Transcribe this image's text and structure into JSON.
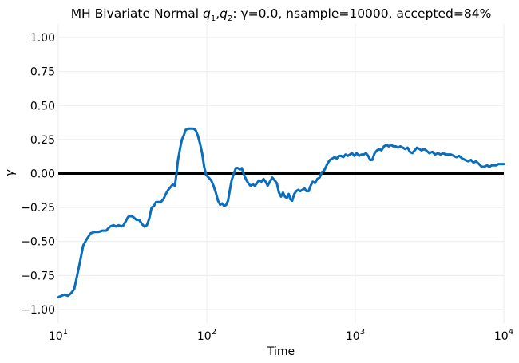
{
  "chart_data": {
    "type": "line",
    "title": "MH Bivariate Normal q₁,q₂: γ=0.0, nsample=10000, accepted=84%",
    "title_parts": {
      "prefix": "MH Bivariate Normal ",
      "q1": "q",
      "q1_sub": "1",
      "comma": ",",
      "q2": "q",
      "q2_sub": "2",
      "suffix": ": γ=0.0, nsample=10000, accepted=84%"
    },
    "xlabel": "Time",
    "ylabel": "γ",
    "x_scale": "log",
    "xlim": [
      10,
      10000
    ],
    "ylim": [
      -1.1,
      1.1
    ],
    "x_ticks": [
      {
        "value": 10,
        "base": "10",
        "exp": "1"
      },
      {
        "value": 100,
        "base": "10",
        "exp": "2"
      },
      {
        "value": 1000,
        "base": "10",
        "exp": "3"
      },
      {
        "value": 10000,
        "base": "10",
        "exp": "4"
      }
    ],
    "y_ticks": [
      {
        "value": 1.0,
        "label": "1.00"
      },
      {
        "value": 0.75,
        "label": "0.75"
      },
      {
        "value": 0.5,
        "label": "0.50"
      },
      {
        "value": 0.25,
        "label": "0.25"
      },
      {
        "value": 0.0,
        "label": "0.00"
      },
      {
        "value": -0.25,
        "label": "−0.25"
      },
      {
        "value": -0.5,
        "label": "−0.50"
      },
      {
        "value": -0.75,
        "label": "−0.75"
      },
      {
        "value": -1.0,
        "label": "−1.00"
      }
    ],
    "grid": true,
    "reference_line": {
      "y": 0.0,
      "color": "#000000"
    },
    "series": [
      {
        "color": "#0a6ebd",
        "points": [
          [
            10,
            -0.91
          ],
          [
            10.5,
            -0.9
          ],
          [
            11,
            -0.89
          ],
          [
            11.6,
            -0.9
          ],
          [
            12.2,
            -0.88
          ],
          [
            12.8,
            -0.85
          ],
          [
            13.4,
            -0.75
          ],
          [
            14,
            -0.65
          ],
          [
            14.7,
            -0.53
          ],
          [
            15.6,
            -0.48
          ],
          [
            16.5,
            -0.44
          ],
          [
            17.5,
            -0.43
          ],
          [
            18.6,
            -0.43
          ],
          [
            19.8,
            -0.42
          ],
          [
            21,
            -0.42
          ],
          [
            22.3,
            -0.39
          ],
          [
            23.5,
            -0.38
          ],
          [
            24.5,
            -0.39
          ],
          [
            25.5,
            -0.38
          ],
          [
            26.5,
            -0.39
          ],
          [
            27.5,
            -0.38
          ],
          [
            28.5,
            -0.35
          ],
          [
            29.5,
            -0.32
          ],
          [
            30.5,
            -0.31
          ],
          [
            32,
            -0.32
          ],
          [
            33.5,
            -0.34
          ],
          [
            35,
            -0.34
          ],
          [
            36.5,
            -0.37
          ],
          [
            38,
            -0.39
          ],
          [
            39.5,
            -0.38
          ],
          [
            41,
            -0.33
          ],
          [
            42.5,
            -0.25
          ],
          [
            44,
            -0.24
          ],
          [
            45.5,
            -0.21
          ],
          [
            47,
            -0.21
          ],
          [
            49,
            -0.21
          ],
          [
            51,
            -0.19
          ],
          [
            53,
            -0.15
          ],
          [
            55,
            -0.12
          ],
          [
            57,
            -0.1
          ],
          [
            59,
            -0.08
          ],
          [
            61,
            -0.09
          ],
          [
            62.5,
            0.0
          ],
          [
            64,
            0.1
          ],
          [
            66,
            0.18
          ],
          [
            68,
            0.25
          ],
          [
            70,
            0.28
          ],
          [
            72,
            0.32
          ],
          [
            75,
            0.33
          ],
          [
            78,
            0.33
          ],
          [
            81,
            0.33
          ],
          [
            84,
            0.32
          ],
          [
            87,
            0.28
          ],
          [
            90,
            0.22
          ],
          [
            93,
            0.15
          ],
          [
            96,
            0.05
          ],
          [
            99,
            -0.01
          ],
          [
            103,
            -0.03
          ],
          [
            107,
            -0.05
          ],
          [
            111,
            -0.09
          ],
          [
            115,
            -0.14
          ],
          [
            119,
            -0.2
          ],
          [
            123,
            -0.23
          ],
          [
            127,
            -0.22
          ],
          [
            131,
            -0.24
          ],
          [
            135,
            -0.23
          ],
          [
            139,
            -0.2
          ],
          [
            143,
            -0.12
          ],
          [
            147,
            -0.05
          ],
          [
            152,
            0.0
          ],
          [
            157,
            0.04
          ],
          [
            162,
            0.04
          ],
          [
            167,
            0.03
          ],
          [
            172,
            0.04
          ],
          [
            177,
            0.0
          ],
          [
            183,
            -0.04
          ],
          [
            190,
            -0.07
          ],
          [
            197,
            -0.09
          ],
          [
            204,
            -0.08
          ],
          [
            211,
            -0.09
          ],
          [
            218,
            -0.07
          ],
          [
            225,
            -0.05
          ],
          [
            233,
            -0.06
          ],
          [
            241,
            -0.04
          ],
          [
            249,
            -0.06
          ],
          [
            257,
            -0.09
          ],
          [
            266,
            -0.06
          ],
          [
            276,
            -0.03
          ],
          [
            286,
            -0.05
          ],
          [
            296,
            -0.07
          ],
          [
            306,
            -0.14
          ],
          [
            316,
            -0.17
          ],
          [
            326,
            -0.14
          ],
          [
            336,
            -0.17
          ],
          [
            346,
            -0.18
          ],
          [
            356,
            -0.15
          ],
          [
            366,
            -0.19
          ],
          [
            376,
            -0.2
          ],
          [
            388,
            -0.15
          ],
          [
            400,
            -0.13
          ],
          [
            413,
            -0.12
          ],
          [
            426,
            -0.13
          ],
          [
            440,
            -0.12
          ],
          [
            455,
            -0.11
          ],
          [
            470,
            -0.13
          ],
          [
            485,
            -0.13
          ],
          [
            500,
            -0.09
          ],
          [
            517,
            -0.06
          ],
          [
            535,
            -0.07
          ],
          [
            555,
            -0.04
          ],
          [
            575,
            -0.03
          ],
          [
            595,
            0.01
          ],
          [
            615,
            0.02
          ],
          [
            635,
            0.05
          ],
          [
            655,
            0.08
          ],
          [
            675,
            0.1
          ],
          [
            700,
            0.11
          ],
          [
            725,
            0.12
          ],
          [
            750,
            0.11
          ],
          [
            775,
            0.13
          ],
          [
            800,
            0.13
          ],
          [
            830,
            0.12
          ],
          [
            860,
            0.14
          ],
          [
            890,
            0.13
          ],
          [
            920,
            0.14
          ],
          [
            950,
            0.15
          ],
          [
            985,
            0.13
          ],
          [
            1020,
            0.15
          ],
          [
            1060,
            0.13
          ],
          [
            1100,
            0.14
          ],
          [
            1140,
            0.14
          ],
          [
            1180,
            0.15
          ],
          [
            1220,
            0.13
          ],
          [
            1260,
            0.1
          ],
          [
            1300,
            0.1
          ],
          [
            1350,
            0.15
          ],
          [
            1400,
            0.17
          ],
          [
            1450,
            0.18
          ],
          [
            1500,
            0.17
          ],
          [
            1560,
            0.2
          ],
          [
            1620,
            0.21
          ],
          [
            1680,
            0.2
          ],
          [
            1740,
            0.21
          ],
          [
            1800,
            0.2
          ],
          [
            1870,
            0.2
          ],
          [
            1940,
            0.19
          ],
          [
            2010,
            0.2
          ],
          [
            2090,
            0.19
          ],
          [
            2170,
            0.18
          ],
          [
            2250,
            0.19
          ],
          [
            2330,
            0.16
          ],
          [
            2420,
            0.15
          ],
          [
            2510,
            0.17
          ],
          [
            2600,
            0.19
          ],
          [
            2700,
            0.18
          ],
          [
            2800,
            0.17
          ],
          [
            2900,
            0.18
          ],
          [
            3000,
            0.17
          ],
          [
            3150,
            0.15
          ],
          [
            3300,
            0.16
          ],
          [
            3450,
            0.14
          ],
          [
            3600,
            0.15
          ],
          [
            3750,
            0.14
          ],
          [
            3900,
            0.15
          ],
          [
            4050,
            0.14
          ],
          [
            4200,
            0.14
          ],
          [
            4400,
            0.14
          ],
          [
            4600,
            0.13
          ],
          [
            4800,
            0.12
          ],
          [
            5000,
            0.13
          ],
          [
            5250,
            0.11
          ],
          [
            5500,
            0.1
          ],
          [
            5750,
            0.09
          ],
          [
            6000,
            0.1
          ],
          [
            6250,
            0.08
          ],
          [
            6500,
            0.09
          ],
          [
            6800,
            0.07
          ],
          [
            7100,
            0.05
          ],
          [
            7400,
            0.05
          ],
          [
            7700,
            0.06
          ],
          [
            8000,
            0.05
          ],
          [
            8300,
            0.06
          ],
          [
            8600,
            0.06
          ],
          [
            8900,
            0.06
          ],
          [
            9200,
            0.07
          ],
          [
            9500,
            0.07
          ],
          [
            9800,
            0.07
          ],
          [
            10000,
            0.07
          ]
        ]
      }
    ]
  }
}
